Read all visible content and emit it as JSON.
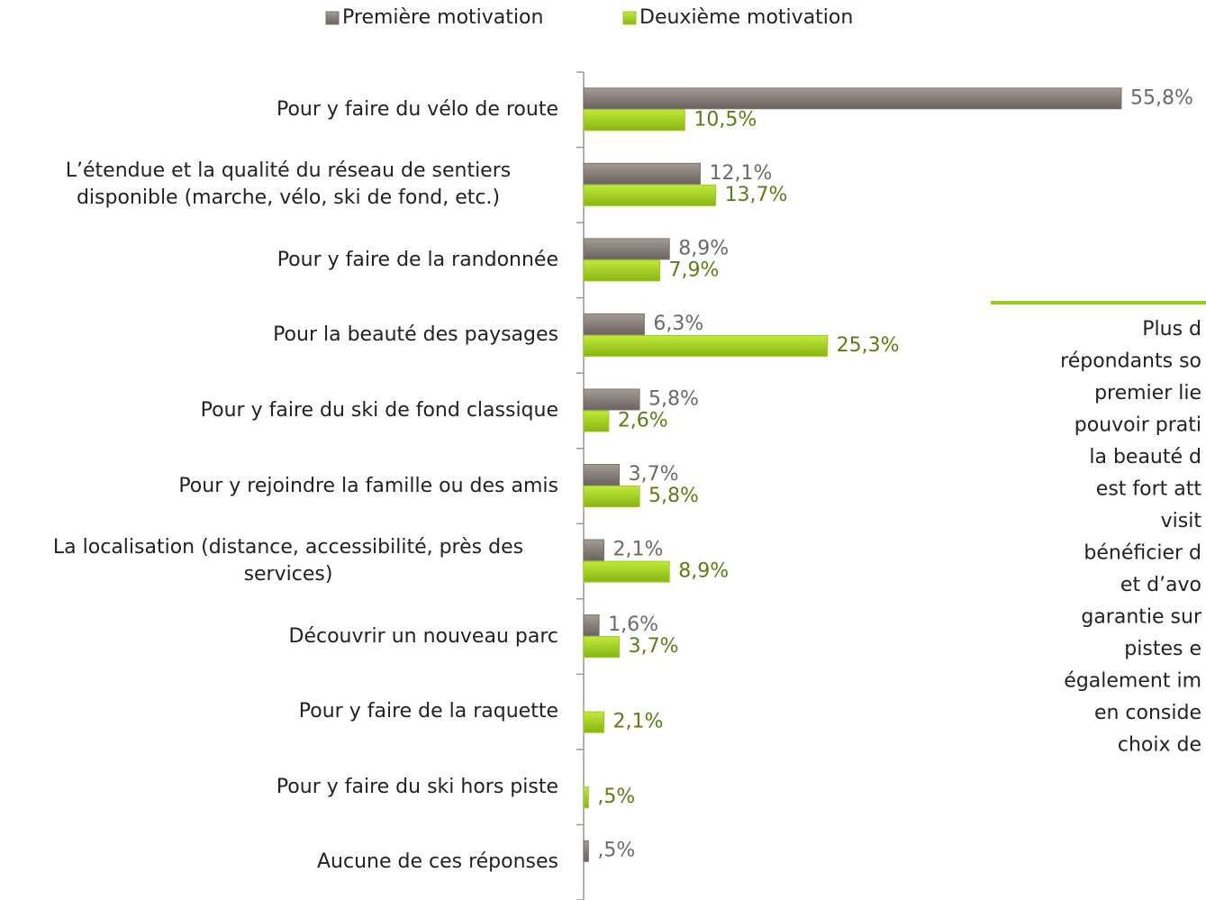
{
  "chart_data": {
    "type": "bar",
    "orientation": "horizontal",
    "categories": [
      "Pour y faire du vélo de route",
      "L’étendue et la qualité du réseau de sentiers disponible (marche, vélo, ski de fond, etc.)",
      "Pour y faire de la randonnée",
      "Pour la beauté des paysages",
      "Pour y faire du ski de fond classique",
      "Pour y rejoindre la famille ou des amis",
      "La localisation (distance, accessibilité, près des services)",
      "Découvrir un nouveau parc",
      "Pour y faire de la raquette",
      "Pour y faire du ski hors piste",
      "Aucune de ces réponses"
    ],
    "series": [
      {
        "name": "Première motivation",
        "color": "#7d756e",
        "label_color": "#6b6b6b",
        "values": [
          55.8,
          12.1,
          8.9,
          6.3,
          5.8,
          3.7,
          2.1,
          1.6,
          null,
          null,
          0.5
        ],
        "value_labels": [
          "55,8%",
          "12,1%",
          "8,9%",
          "6,3%",
          "5,8%",
          "3,7%",
          "2,1%",
          "1,6%",
          null,
          null,
          ",5%"
        ]
      },
      {
        "name": "Deuxième motivation",
        "color": "#99cc1a",
        "label_color": "#5c7d12",
        "values": [
          10.5,
          13.7,
          7.9,
          25.3,
          2.6,
          5.8,
          8.9,
          3.7,
          2.1,
          0.5,
          null
        ],
        "value_labels": [
          "10,5%",
          "13,7%",
          "7,9%",
          "25,3%",
          "2,6%",
          "5,8%",
          "8,9%",
          "3,7%",
          "2,1%",
          ",5%",
          null
        ]
      }
    ],
    "xlim": [
      0,
      60
    ],
    "legend": "top",
    "annotation": [
      "Plus d",
      "répondants so",
      "premier lie",
      "pouvoir prati",
      "la beauté d",
      "est fort att",
      "visit",
      "bénéficier d",
      "et d’avo",
      "garantie sur",
      "pistes e",
      "également im",
      "en conside",
      "choix de"
    ]
  }
}
